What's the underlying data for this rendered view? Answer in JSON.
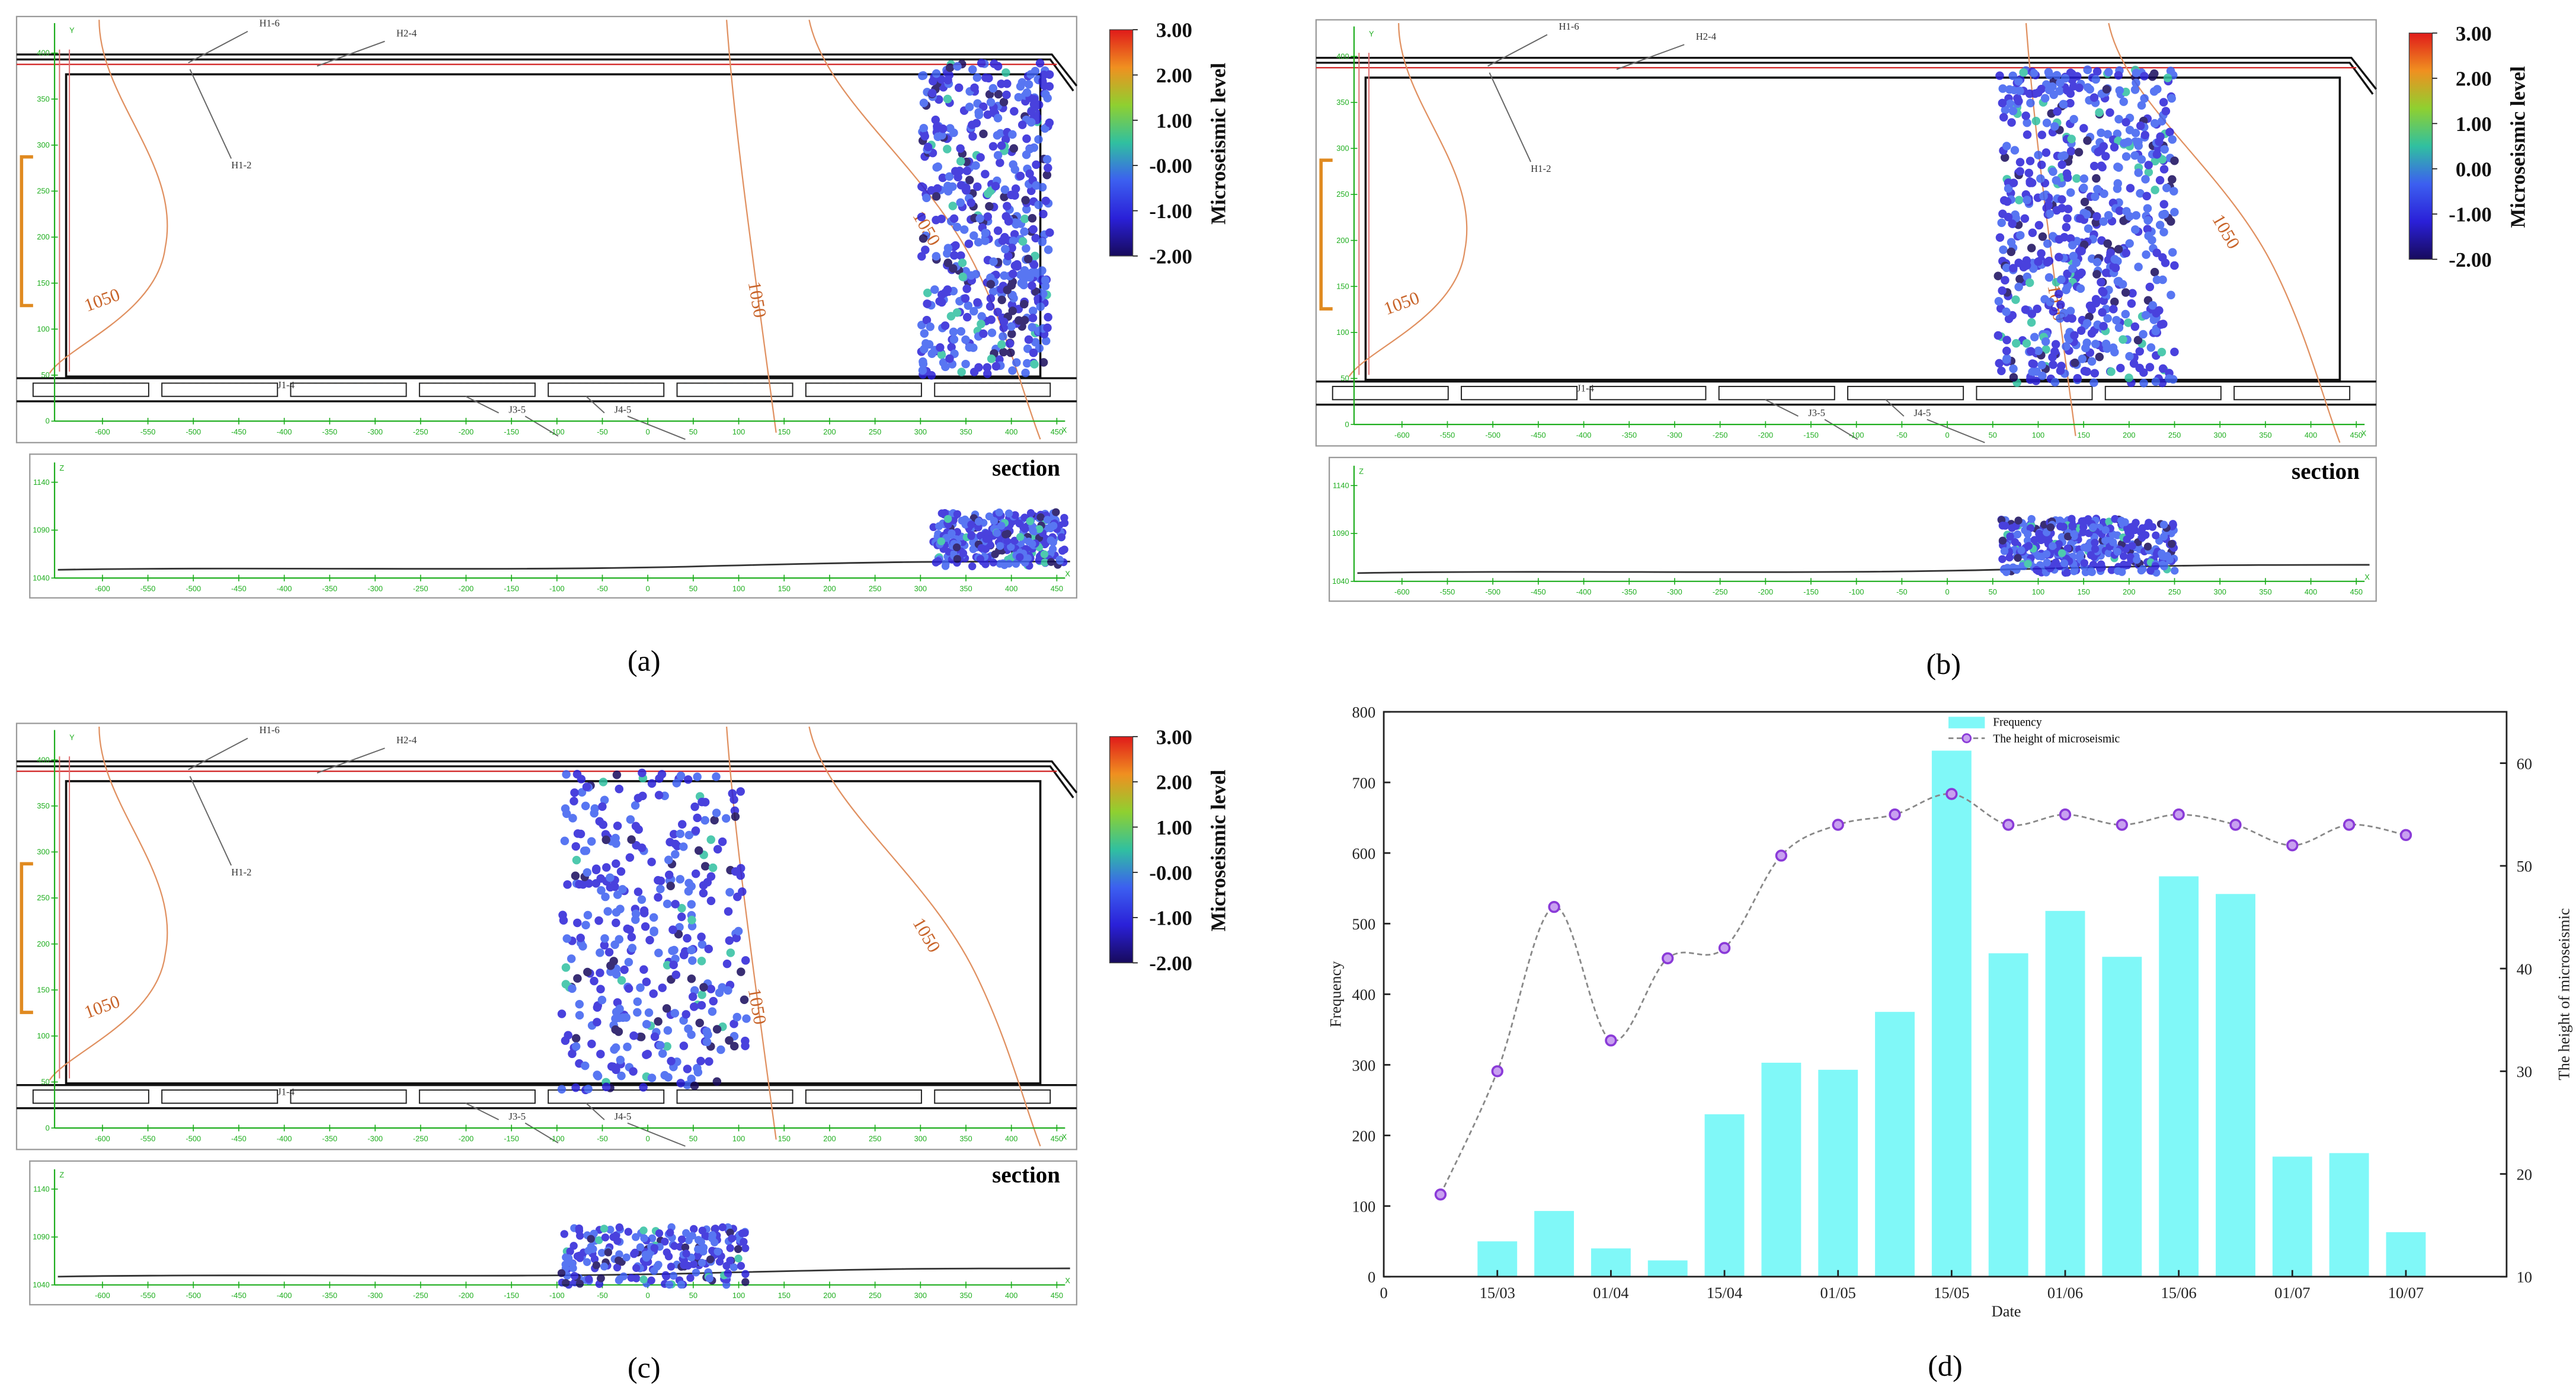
{
  "chart_data": [
    {
      "type": "map",
      "label": "(a)",
      "colorbar": {
        "title": "Microseismic level",
        "lim": [
          -2,
          3
        ],
        "ticks": [
          {
            "value": 3,
            "label": "3.00"
          },
          {
            "value": 2,
            "label": "2.00"
          },
          {
            "value": 1,
            "label": "1.00"
          },
          {
            "value": 0,
            "label": "-0.00"
          },
          {
            "value": -1,
            "label": "-1.00"
          },
          {
            "value": -2,
            "label": "-2.00"
          }
        ],
        "colors": [
          "#170a5c",
          "#2a20d8",
          "#3c5ff0",
          "#30c0a0",
          "#8fd030",
          "#f09020",
          "#e01a1a"
        ]
      },
      "roadways": [
        "H1-6",
        "H2-4",
        "H1-2",
        "J1-4",
        "J3-5",
        "J4-5"
      ],
      "contour_labels": [
        "1050",
        "1050",
        "1050"
      ],
      "section_label": "section",
      "axis_names": [
        "X",
        "Y",
        "Z",
        "X"
      ],
      "xlim": [
        -640,
        470
      ],
      "xticks": [
        -600,
        -550,
        -500,
        -450,
        -400,
        -350,
        -300,
        -250,
        -200,
        -150,
        -100,
        -50,
        0,
        50,
        100,
        150,
        200,
        250,
        300,
        350,
        400,
        450
      ],
      "ylim": [
        0,
        420
      ],
      "yticks": [
        0,
        50,
        100,
        150,
        200,
        250,
        300,
        350,
        400
      ],
      "zlim": [
        1030,
        1150
      ],
      "zticks": [
        1040,
        1090,
        1140
      ]
    },
    {
      "type": "map",
      "label": "(b)",
      "colorbar": {
        "title": "Microseismic level",
        "lim": [
          -2,
          3
        ],
        "ticks": [
          {
            "value": 3,
            "label": "3.00"
          },
          {
            "value": 2,
            "label": "2.00"
          },
          {
            "value": 1,
            "label": "1.00"
          },
          {
            "value": 0,
            "label": "0.00"
          },
          {
            "value": -1,
            "label": "-1.00"
          },
          {
            "value": -2,
            "label": "-2.00"
          }
        ],
        "colors": [
          "#170a5c",
          "#2a20d8",
          "#3c5ff0",
          "#30c0a0",
          "#8fd030",
          "#f09020",
          "#e01a1a"
        ]
      },
      "roadways": [
        "H1-6",
        "H2-4",
        "H1-2",
        "J1-4",
        "J3-5",
        "J4-5"
      ],
      "contour_labels": [
        "1050",
        "1050",
        "1050"
      ],
      "section_label": "section",
      "axis_names": [
        "X",
        "Y",
        "Z",
        "X"
      ],
      "xlim": [
        -640,
        470
      ],
      "xticks": [
        -600,
        -550,
        -500,
        -450,
        -400,
        -350,
        -300,
        -250,
        -200,
        -150,
        -100,
        -50,
        0,
        50,
        100,
        150,
        200,
        250,
        300,
        350,
        400,
        450
      ],
      "ylim": [
        0,
        420
      ],
      "yticks": [
        0,
        50,
        100,
        150,
        200,
        250,
        300,
        350,
        400
      ],
      "zlim": [
        1030,
        1150
      ],
      "zticks": [
        1040,
        1090,
        1140
      ]
    },
    {
      "type": "map",
      "label": "(c)",
      "colorbar": {
        "title": "Microseismic level",
        "lim": [
          -2,
          3
        ],
        "ticks": [
          {
            "value": 3,
            "label": "3.00"
          },
          {
            "value": 2,
            "label": "2.00"
          },
          {
            "value": 1,
            "label": "1.00"
          },
          {
            "value": 0,
            "label": "-0.00"
          },
          {
            "value": -1,
            "label": "-1.00"
          },
          {
            "value": -2,
            "label": "-2.00"
          }
        ],
        "colors": [
          "#170a5c",
          "#2a20d8",
          "#3c5ff0",
          "#30c0a0",
          "#8fd030",
          "#f09020",
          "#e01a1a"
        ]
      },
      "roadways": [
        "H1-6",
        "H2-4",
        "H1-2",
        "J1-4",
        "J3-5",
        "J4-5"
      ],
      "contour_labels": [
        "1050",
        "1050",
        "1050"
      ],
      "section_label": "section",
      "axis_names": [
        "X",
        "Y",
        "Z",
        "X"
      ],
      "xlim": [
        -640,
        470
      ],
      "xticks": [
        -600,
        -550,
        -500,
        -450,
        -400,
        -350,
        -300,
        -250,
        -200,
        -150,
        -100,
        -50,
        0,
        50,
        100,
        150,
        200,
        250,
        300,
        350,
        400,
        450
      ],
      "ylim": [
        0,
        420
      ],
      "yticks": [
        0,
        50,
        100,
        150,
        200,
        250,
        300,
        350,
        400
      ],
      "zlim": [
        1030,
        1150
      ],
      "zticks": [
        1040,
        1090,
        1140
      ]
    },
    {
      "type": "bar_line",
      "label": "(d)",
      "x_label": "Date",
      "y_label": "Frequency",
      "y2_label": "The height of microseismic",
      "categories": [
        "0",
        null,
        "15/03",
        null,
        "01/04",
        null,
        "15/04",
        null,
        "01/05",
        null,
        "15/05",
        null,
        "01/06",
        null,
        "15/06",
        null,
        "01/07",
        null,
        "10/07"
      ],
      "series": [
        {
          "name": "Frequency",
          "type": "bar",
          "color": "#80f8f8",
          "values": [
            null,
            null,
            50,
            93,
            40,
            23,
            230,
            303,
            293,
            375,
            745,
            458,
            518,
            453,
            567,
            542,
            170,
            175,
            63
          ]
        },
        {
          "name": "The height of microseismic",
          "type": "line",
          "axis": "y2",
          "color": "#8a3ad8",
          "line_color": "#888888",
          "values": [
            null,
            18,
            30,
            46,
            33,
            41,
            42,
            51,
            54,
            55,
            57,
            54,
            55,
            54,
            55,
            54,
            52,
            54,
            53
          ]
        }
      ],
      "ylim": [
        0,
        800
      ],
      "yticks": [
        0,
        100,
        200,
        300,
        400,
        500,
        600,
        700,
        800
      ],
      "y2lim": [
        10,
        65
      ],
      "y2ticks": [
        10,
        20,
        30,
        40,
        50,
        60
      ],
      "legend": "upper center"
    }
  ]
}
